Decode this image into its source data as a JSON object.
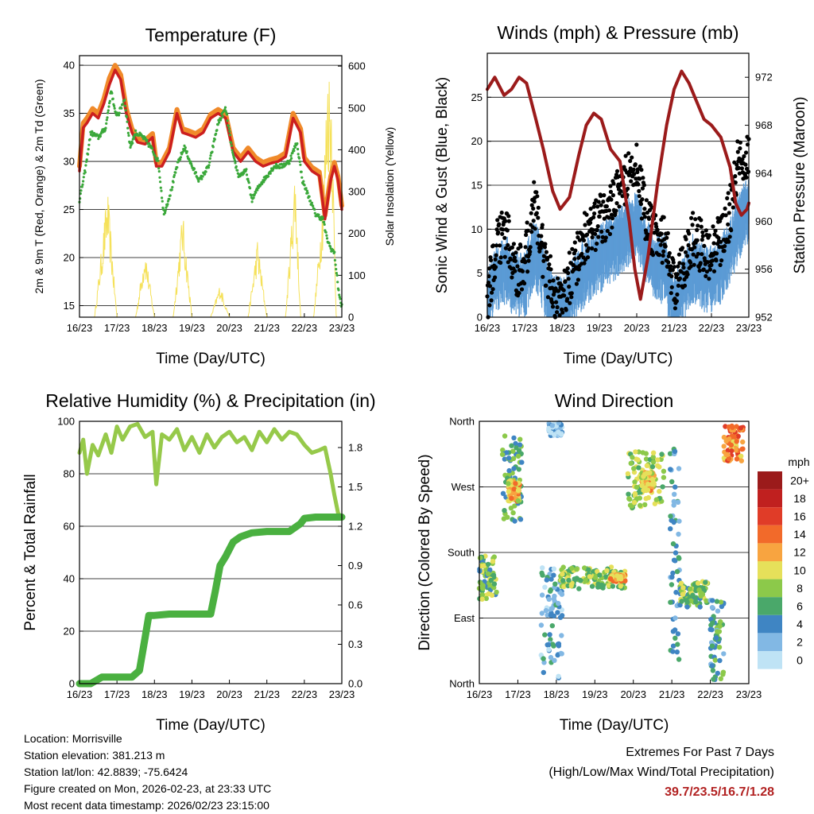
{
  "colors": {
    "temp_2m": "#cc1f1f",
    "temp_9m": "#f08a2a",
    "dewpoint": "#3aa83a",
    "solar": "#f5e15a",
    "wind": "#5b9bd5",
    "gust": "#000000",
    "pressure": "#9b1b1b",
    "rh": "#96c94a",
    "precip": "#4ab040"
  },
  "shared": {
    "day_ticks": [
      "16/23",
      "17/23",
      "18/23",
      "19/23",
      "20/23",
      "21/23",
      "22/23",
      "23/23"
    ],
    "xlabel": "Time (Day/UTC)"
  },
  "chart_data": [
    {
      "id": "temperature",
      "type": "line",
      "title": "Temperature (F)",
      "xlabel": "Time (Day/UTC)",
      "ylabel": "2m & 9m T (Red, Orange) & 2m Td (Green)",
      "ylabel_right": "Solar Insolation (Yellow)",
      "xlim": [
        0,
        7
      ],
      "ylim": [
        13.8,
        41
      ],
      "ylim_right": [
        0,
        625
      ],
      "yticks": [
        15,
        20,
        25,
        30,
        35,
        40
      ],
      "yticks_right": [
        0,
        100,
        200,
        300,
        400,
        500,
        600
      ],
      "series": [
        {
          "name": "2m T",
          "color": "#cc1f1f",
          "x": [
            0,
            0.1,
            0.2,
            0.35,
            0.5,
            0.65,
            0.8,
            0.95,
            1.1,
            1.25,
            1.4,
            1.55,
            1.75,
            1.95,
            2.05,
            2.2,
            2.4,
            2.6,
            2.75,
            2.9,
            3.1,
            3.3,
            3.5,
            3.7,
            3.9,
            4.1,
            4.3,
            4.5,
            4.7,
            4.9,
            5.1,
            5.3,
            5.5,
            5.7,
            5.9,
            6.0,
            6.2,
            6.4,
            6.55,
            6.7,
            6.8,
            6.9,
            7.0
          ],
          "values": [
            29,
            33.5,
            34,
            35,
            34.5,
            36,
            38,
            39.5,
            38.5,
            35,
            33,
            32,
            31.8,
            32.5,
            29.5,
            29.5,
            31,
            35,
            33,
            32.8,
            32.5,
            33,
            34.5,
            35,
            34.5,
            31,
            30,
            31,
            30,
            29.5,
            29.8,
            30,
            30.5,
            34.5,
            33,
            30,
            29,
            28.5,
            24,
            28,
            29.5,
            28,
            25
          ]
        },
        {
          "name": "9m T",
          "color": "#f08a2a",
          "x": [
            0,
            0.1,
            0.2,
            0.35,
            0.5,
            0.65,
            0.8,
            0.95,
            1.1,
            1.25,
            1.4,
            1.55,
            1.75,
            1.95,
            2.05,
            2.2,
            2.4,
            2.6,
            2.75,
            2.9,
            3.1,
            3.3,
            3.5,
            3.7,
            3.9,
            4.1,
            4.3,
            4.5,
            4.7,
            4.9,
            5.1,
            5.3,
            5.5,
            5.7,
            5.9,
            6.0,
            6.2,
            6.4,
            6.55,
            6.7,
            6.8,
            6.9,
            7.0
          ],
          "values": [
            29.5,
            34,
            34.5,
            35.5,
            35,
            36.5,
            38.7,
            40,
            39,
            35.5,
            33.4,
            32.4,
            32.2,
            32.9,
            29.9,
            29.9,
            31.4,
            35.4,
            33.4,
            33.2,
            32.9,
            33.4,
            34.9,
            35.4,
            34.9,
            31.4,
            30.4,
            31.4,
            30.4,
            29.9,
            30.2,
            30.4,
            30.9,
            35,
            33.4,
            30.4,
            29.4,
            28.9,
            24.4,
            28.4,
            29.9,
            28.4,
            25.4
          ]
        },
        {
          "name": "2m Td",
          "color": "#3aa83a",
          "x": [
            0,
            0.15,
            0.3,
            0.5,
            0.7,
            0.85,
            0.95,
            1.05,
            1.2,
            1.35,
            1.5,
            1.7,
            1.9,
            2.1,
            2.25,
            2.45,
            2.6,
            2.8,
            3.0,
            3.2,
            3.45,
            3.7,
            3.9,
            4.1,
            4.25,
            4.45,
            4.6,
            4.8,
            5.0,
            5.2,
            5.4,
            5.6,
            5.8,
            5.95,
            6.1,
            6.3,
            6.5,
            6.6,
            6.7,
            6.8,
            6.9,
            6.98
          ],
          "values": [
            26,
            29,
            33,
            32.5,
            33.5,
            37.5,
            35,
            35,
            36.5,
            31.5,
            33,
            32.5,
            31.5,
            30,
            24.5,
            27,
            29.5,
            31.5,
            29.5,
            28,
            29.5,
            34,
            35.5,
            30.5,
            28.5,
            29,
            26,
            27.5,
            28.5,
            29.5,
            29.5,
            30,
            32,
            28,
            26.5,
            24.5,
            24,
            22,
            21,
            20.5,
            17,
            15
          ]
        },
        {
          "name": "Solar Insolation",
          "color": "#f5e15a",
          "axis": "right",
          "x": [
            0,
            0.4,
            0.75,
            1.0,
            1.25,
            1.5,
            1.75,
            2.0,
            2.25,
            2.5,
            2.75,
            3.0,
            3.25,
            3.5,
            3.75,
            4.0,
            4.25,
            4.5,
            4.75,
            5.0,
            5.25,
            5.5,
            5.75,
            5.9,
            6.0,
            6.25,
            6.5,
            6.62,
            6.72,
            6.85,
            7.0
          ],
          "values": [
            0,
            0,
            310,
            0,
            0,
            0,
            170,
            0,
            0,
            0,
            260,
            0,
            0,
            0,
            80,
            0,
            0,
            0,
            190,
            0,
            0,
            0,
            370,
            0,
            0,
            0,
            300,
            620,
            580,
            0,
            0
          ]
        }
      ]
    },
    {
      "id": "winds",
      "type": "scatter",
      "title": "Winds (mph) & Pressure (mb)",
      "xlabel": "Time (Day/UTC)",
      "ylabel": "Sonic Wind & Gust (Blue, Black)",
      "ylabel_right": "Station Pressure (Maroon)",
      "xlim": [
        0,
        7
      ],
      "ylim": [
        0,
        30
      ],
      "ylim_right": [
        952,
        974
      ],
      "yticks": [
        0,
        5,
        10,
        15,
        20,
        25
      ],
      "yticks_right": [
        952,
        956,
        960,
        964,
        968,
        972
      ],
      "series": [
        {
          "name": "Sonic Wind",
          "color": "#5b9bd5",
          "x": [
            0,
            0.25,
            0.5,
            0.75,
            1.0,
            1.25,
            1.5,
            1.75,
            2.0,
            2.25,
            2.5,
            2.75,
            3.0,
            3.25,
            3.5,
            3.75,
            4.0,
            4.25,
            4.5,
            4.75,
            5.0,
            5.25,
            5.5,
            5.75,
            6.0,
            6.25,
            6.5,
            6.75,
            7.0
          ],
          "values": [
            3,
            6,
            7,
            5,
            5,
            9,
            6,
            3,
            2,
            4,
            6,
            7,
            8,
            9,
            10,
            11,
            12,
            9,
            7,
            7,
            2,
            5,
            7,
            6,
            6,
            7,
            9,
            12,
            14
          ]
        },
        {
          "name": "Gust",
          "color": "#000000",
          "x": [
            0,
            0.25,
            0.5,
            0.75,
            1.0,
            1.25,
            1.5,
            1.75,
            2.0,
            2.25,
            2.5,
            2.75,
            3.0,
            3.25,
            3.5,
            3.75,
            4.0,
            4.25,
            4.5,
            4.75,
            5.0,
            5.25,
            5.5,
            5.75,
            6.0,
            6.25,
            6.5,
            6.75,
            7.0
          ],
          "values": [
            5,
            11,
            13,
            8,
            9,
            16,
            10,
            6,
            5,
            8,
            11,
            13,
            14,
            15,
            17,
            19,
            21,
            14,
            12,
            12,
            6,
            9,
            12,
            11,
            10,
            12,
            15,
            22,
            21
          ]
        },
        {
          "name": "Station Pressure",
          "color": "#9b1b1b",
          "axis": "right",
          "x": [
            0,
            0.2,
            0.45,
            0.65,
            0.85,
            1.05,
            1.3,
            1.5,
            1.75,
            1.95,
            2.2,
            2.45,
            2.65,
            2.85,
            3.05,
            3.3,
            3.55,
            3.8,
            3.95,
            4.1,
            4.3,
            4.55,
            4.8,
            5.0,
            5.2,
            5.4,
            5.6,
            5.8,
            6.0,
            6.25,
            6.5,
            6.65,
            6.8,
            6.95,
            7.0
          ],
          "values": [
            971,
            972,
            970.5,
            971,
            972,
            971.5,
            968.5,
            966,
            962.5,
            961,
            962,
            965.5,
            968,
            969,
            968.5,
            966,
            965,
            960,
            956,
            953.5,
            957,
            963,
            968,
            971,
            972.5,
            971.5,
            970,
            968.5,
            968,
            967,
            964.5,
            961.5,
            960.5,
            961,
            961.5
          ]
        }
      ]
    },
    {
      "id": "humidity",
      "type": "line",
      "title": "Relative Humidity (%) & Precipitation (in)",
      "xlabel": "Time (Day/UTC)",
      "ylabel": "Percent & Total Rainfall",
      "xlim": [
        0,
        7
      ],
      "ylim": [
        0,
        100
      ],
      "ylim_right": [
        0,
        2.0
      ],
      "yticks": [
        0,
        20,
        40,
        60,
        80,
        100
      ],
      "yticks_right": [
        0.0,
        0.3,
        0.6,
        0.9,
        1.2,
        1.5,
        1.8
      ],
      "ytick_labels_right": [
        "0.0",
        "0.3",
        "0.6",
        "0.9",
        "1.2",
        "1.5",
        "1.8"
      ],
      "series": [
        {
          "name": "Relative Humidity",
          "color": "#96c94a",
          "x": [
            0,
            0.1,
            0.2,
            0.35,
            0.5,
            0.7,
            0.85,
            1.0,
            1.15,
            1.35,
            1.55,
            1.75,
            1.95,
            2.05,
            2.2,
            2.4,
            2.6,
            2.8,
            3.0,
            3.2,
            3.4,
            3.6,
            3.8,
            4.0,
            4.2,
            4.4,
            4.6,
            4.8,
            5.0,
            5.2,
            5.4,
            5.6,
            5.8,
            6.0,
            6.2,
            6.4,
            6.55,
            6.7,
            6.8,
            6.9,
            7.0
          ],
          "values": [
            88,
            93,
            80,
            91,
            87,
            95,
            88,
            98,
            93,
            98,
            99,
            94,
            96,
            76,
            95,
            93,
            97,
            89,
            94,
            88,
            95,
            90,
            94,
            96,
            92,
            94,
            89,
            96,
            92,
            97,
            93,
            96,
            95,
            91,
            88,
            89,
            90,
            80,
            72,
            65,
            63
          ]
        },
        {
          "name": "Total Precipitation",
          "color": "#4ab040",
          "axis": "right",
          "x": [
            0,
            0.3,
            0.6,
            1.0,
            1.4,
            1.6,
            1.75,
            1.85,
            2.0,
            2.4,
            2.8,
            3.2,
            3.5,
            3.62,
            3.75,
            3.9,
            4.1,
            4.3,
            4.6,
            5.0,
            5.6,
            5.9,
            6.0,
            6.3,
            6.7,
            7.0
          ],
          "values": [
            0,
            0,
            0.05,
            0.05,
            0.05,
            0.1,
            0.35,
            0.52,
            0.52,
            0.53,
            0.53,
            0.53,
            0.53,
            0.7,
            0.9,
            0.97,
            1.08,
            1.12,
            1.15,
            1.16,
            1.16,
            1.22,
            1.26,
            1.27,
            1.27,
            1.27
          ]
        }
      ]
    },
    {
      "id": "direction",
      "type": "scatter",
      "title": "Wind Direction",
      "xlabel": "Time (Day/UTC)",
      "ylabel": "Direction (Colored By Speed)",
      "xlim": [
        0,
        7
      ],
      "ylim": [
        0,
        360
      ],
      "ytick_values": [
        0,
        90,
        180,
        270,
        360
      ],
      "ytick_labels": [
        "North",
        "East",
        "South",
        "West",
        "North"
      ],
      "colorbar_title": "mph",
      "colorbar_labels": [
        "20+",
        "18",
        "16",
        "14",
        "12",
        "10",
        "8",
        "6",
        "4",
        "2",
        "0"
      ],
      "colorbar_colors": [
        "#9b1b1b",
        "#c0201f",
        "#e03c28",
        "#f26a2a",
        "#f8a440",
        "#e6e05a",
        "#8cc94a",
        "#4aa86a",
        "#3f85c3",
        "#82b8e4",
        "#bfe3f5"
      ],
      "clusters": [
        {
          "x0": 0.0,
          "x1": 0.45,
          "dir0": 115,
          "dir1": 175,
          "speed": 7
        },
        {
          "x0": 0.6,
          "x1": 1.1,
          "dir0": 220,
          "dir1": 340,
          "speed": 6
        },
        {
          "x0": 0.75,
          "x1": 1.05,
          "dir0": 250,
          "dir1": 280,
          "speed": 11
        },
        {
          "x0": 1.6,
          "x1": 2.15,
          "dir0": 5,
          "dir1": 160,
          "speed": 3
        },
        {
          "x0": 1.8,
          "x1": 2.15,
          "dir0": 340,
          "dir1": 358,
          "speed": 2
        },
        {
          "x0": 2.1,
          "x1": 3.8,
          "dir0": 130,
          "dir1": 160,
          "speed": 8
        },
        {
          "x0": 3.4,
          "x1": 3.8,
          "dir0": 140,
          "dir1": 150,
          "speed": 12
        },
        {
          "x0": 3.85,
          "x1": 4.8,
          "dir0": 240,
          "dir1": 320,
          "speed": 8
        },
        {
          "x0": 4.2,
          "x1": 4.55,
          "dir0": 265,
          "dir1": 290,
          "speed": 11
        },
        {
          "x0": 4.95,
          "x1": 5.2,
          "dir0": 30,
          "dir1": 330,
          "speed": 4
        },
        {
          "x0": 5.2,
          "x1": 5.95,
          "dir0": 105,
          "dir1": 140,
          "speed": 7
        },
        {
          "x0": 6.0,
          "x1": 6.35,
          "dir0": 5,
          "dir1": 115,
          "speed": 5
        },
        {
          "x0": 6.35,
          "x1": 6.85,
          "dir0": 305,
          "dir1": 355,
          "speed": 13
        }
      ]
    }
  ],
  "footer": {
    "location": "Location: Morrisville",
    "elevation": "Station elevation: 381.213 m",
    "latlon": "Station lat/lon: 42.8839; -75.6424",
    "created": "Figure created on Mon, 2026-02-23, at 23:33 UTC",
    "recent": "Most recent data timestamp: 2026/02/23 23:15:00",
    "extremes_title": "Extremes For Past 7 Days",
    "extremes_subtitle": "(High/Low/Max Wind/Total Precipitation)",
    "extremes_values": "39.7/23.5/16.7/1.28"
  }
}
